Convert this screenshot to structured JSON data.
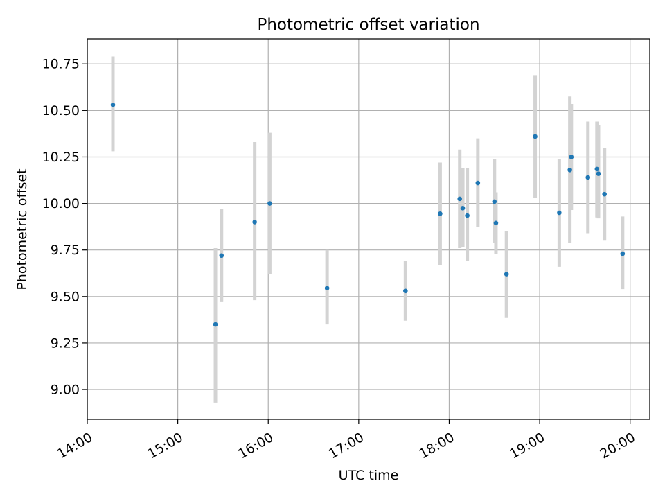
{
  "chart_data": {
    "type": "scatter",
    "title": "Photometric offset variation",
    "xlabel": "UTC time",
    "ylabel": "Photometric offset",
    "xlim": [
      "14:00",
      "20:13"
    ],
    "ylim": [
      8.84,
      10.885
    ],
    "x_ticks": [
      "14:00",
      "15:00",
      "16:00",
      "17:00",
      "18:00",
      "19:00",
      "20:00"
    ],
    "y_ticks": [
      9.0,
      9.25,
      9.5,
      9.75,
      10.0,
      10.25,
      10.5,
      10.75
    ],
    "y_tick_labels": [
      "9.00",
      "9.25",
      "9.50",
      "9.75",
      "10.00",
      "10.25",
      "10.50",
      "10.75"
    ],
    "grid": true,
    "error_bars": true,
    "colors": {
      "point": "#1f77b4",
      "error_bar": "#d3d3d3",
      "grid": "#b0b0b0"
    },
    "points": [
      {
        "x": "14:17",
        "y": 10.53,
        "low": 10.28,
        "high": 10.79
      },
      {
        "x": "15:25",
        "y": 9.35,
        "low": 8.93,
        "high": 9.76
      },
      {
        "x": "15:29",
        "y": 9.72,
        "low": 9.47,
        "high": 9.97
      },
      {
        "x": "15:51",
        "y": 9.9,
        "low": 9.48,
        "high": 10.33
      },
      {
        "x": "16:01",
        "y": 10.0,
        "low": 9.62,
        "high": 10.38
      },
      {
        "x": "16:39",
        "y": 9.545,
        "low": 9.35,
        "high": 9.75
      },
      {
        "x": "17:31",
        "y": 9.53,
        "low": 9.37,
        "high": 9.69
      },
      {
        "x": "17:54",
        "y": 9.945,
        "low": 9.67,
        "high": 10.22
      },
      {
        "x": "18:07",
        "y": 10.025,
        "low": 9.76,
        "high": 10.29
      },
      {
        "x": "18:09",
        "y": 9.975,
        "low": 9.765,
        "high": 10.19
      },
      {
        "x": "18:12",
        "y": 9.935,
        "low": 9.69,
        "high": 10.19
      },
      {
        "x": "18:19",
        "y": 10.11,
        "low": 9.875,
        "high": 10.35
      },
      {
        "x": "18:30",
        "y": 10.01,
        "low": 9.79,
        "high": 10.24
      },
      {
        "x": "18:31",
        "y": 9.895,
        "low": 9.73,
        "high": 10.06
      },
      {
        "x": "18:38",
        "y": 9.62,
        "low": 9.385,
        "high": 9.85
      },
      {
        "x": "18:57",
        "y": 10.36,
        "low": 10.03,
        "high": 10.69
      },
      {
        "x": "19:13",
        "y": 9.95,
        "low": 9.66,
        "high": 10.24
      },
      {
        "x": "19:20",
        "y": 10.18,
        "low": 9.79,
        "high": 10.575
      },
      {
        "x": "19:21",
        "y": 10.25,
        "low": 9.965,
        "high": 10.535
      },
      {
        "x": "19:32",
        "y": 10.14,
        "low": 9.84,
        "high": 10.44
      },
      {
        "x": "19:38",
        "y": 10.185,
        "low": 9.925,
        "high": 10.44
      },
      {
        "x": "19:39",
        "y": 10.16,
        "low": 9.92,
        "high": 10.42
      },
      {
        "x": "19:43",
        "y": 10.05,
        "low": 9.8,
        "high": 10.3
      },
      {
        "x": "19:55",
        "y": 9.73,
        "low": 9.54,
        "high": 9.93
      }
    ]
  }
}
